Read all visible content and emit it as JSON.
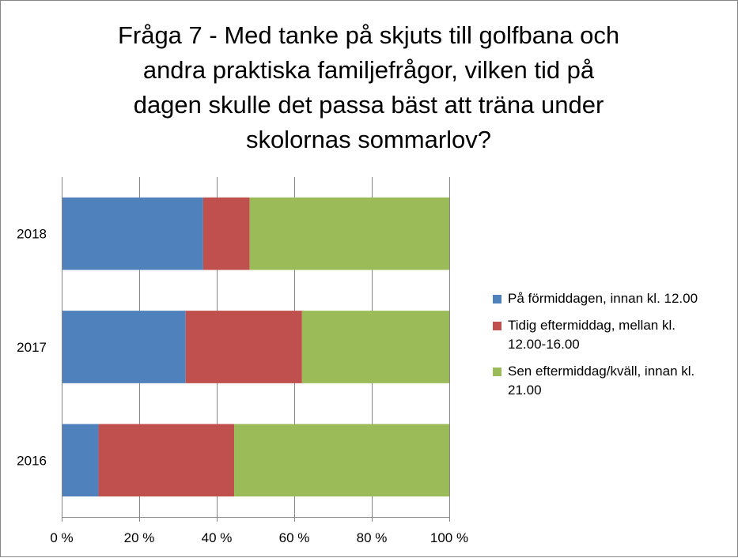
{
  "chart_data": {
    "type": "bar",
    "orientation": "horizontal",
    "stacked": "percent",
    "title": "Fråga 7 - Med tanke på skjuts till golfbana och andra praktiska familjefrågor, vilken tid på dagen skulle det passa bäst att träna under skolornas sommarlov?",
    "title_lines": [
      "Fråga 7 - Med tanke på skjuts till golfbana och",
      "andra praktiska familjefrågor, vilken tid på",
      "dagen skulle det passa bäst att träna under",
      "skolornas sommarlov?"
    ],
    "categories": [
      "2018",
      "2017",
      "2016"
    ],
    "series": [
      {
        "name": "På förmiddagen, innan kl. 12.00",
        "name_lines": [
          "På förmiddagen, innan kl. 12.00"
        ],
        "color": "#4F81BD",
        "values": [
          36.5,
          32,
          9.5
        ]
      },
      {
        "name": "Tidig eftermiddag, mellan kl. 12.00-16.00",
        "name_lines": [
          "Tidig eftermiddag, mellan kl.",
          "12.00-16.00"
        ],
        "color": "#C0504D",
        "values": [
          12,
          30,
          35
        ]
      },
      {
        "name": "Sen eftermiddag/kväll, innan kl. 21.00",
        "name_lines": [
          "Sen eftermiddag/kväll, innan kl.",
          "21.00"
        ],
        "color": "#9BBB59",
        "values": [
          51.5,
          38,
          55.5
        ]
      }
    ],
    "xlim": [
      0,
      100
    ],
    "x_ticks": [
      0,
      20,
      40,
      60,
      80,
      100
    ],
    "x_tick_labels": [
      "0 %",
      "20 %",
      "40 %",
      "60 %",
      "80 %",
      "100 %"
    ],
    "xlabel": "",
    "ylabel": "",
    "grid": "vertical",
    "legend_position": "right"
  }
}
